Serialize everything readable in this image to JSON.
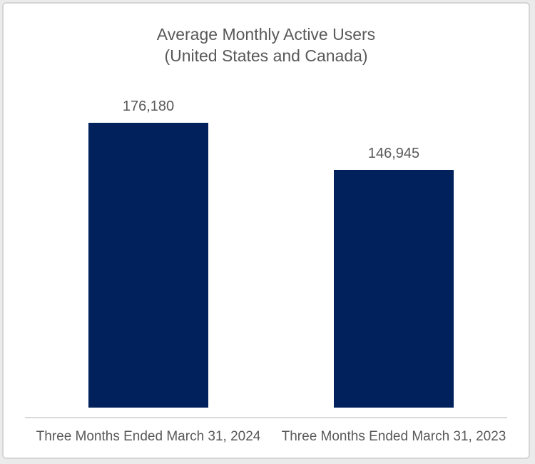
{
  "frame": {
    "background": "#ffffff",
    "border_color": "#d5d5d5"
  },
  "chart_data": {
    "type": "bar",
    "title": "Average Monthly Active Users",
    "subtitle": "(United States and Canada)",
    "categories": [
      "Three Months Ended March 31, 2024",
      "Three Months Ended March 31, 2023"
    ],
    "values": [
      176180,
      146945
    ],
    "value_labels": [
      "176,180",
      "146,945"
    ],
    "series_name": "Average Monthly Active Users",
    "bar_color": "#01215c",
    "text_color": "#595959",
    "axis_line_color": "#d9d9d9",
    "y_baseline": 0,
    "grid": false,
    "legend": "none",
    "y_axis_visible": false
  }
}
